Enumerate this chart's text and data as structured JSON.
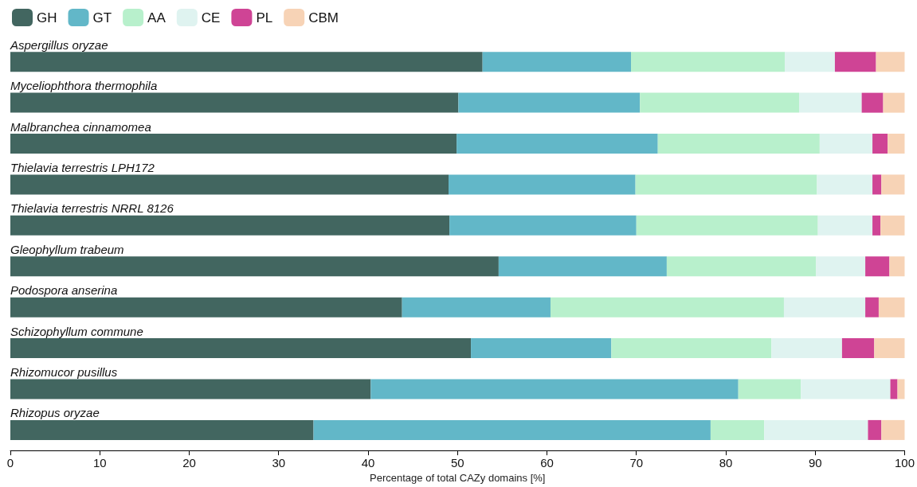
{
  "chart_data": {
    "type": "bar",
    "orientation": "horizontal",
    "stacked": true,
    "categories": [
      "Aspergillus oryzae",
      "Myceliophthora thermophila",
      "Malbranchea cinnamomea",
      "Thielavia terrestris LPH172",
      "Thielavia terrestris NRRL 8126",
      "Gleophyllum trabeum",
      "Podospora anserina",
      "Schizophyllum commune",
      "Rhizomucor pusillus",
      "Rhizopus oryzae"
    ],
    "series": [
      {
        "name": "GH",
        "color": "#426660",
        "values": [
          52.8,
          50.1,
          49.9,
          49.0,
          49.1,
          54.6,
          43.8,
          51.5,
          40.3,
          33.9
        ]
      },
      {
        "name": "GT",
        "color": "#62b7c8",
        "values": [
          16.6,
          20.3,
          22.5,
          20.9,
          20.9,
          18.8,
          16.6,
          15.7,
          41.1,
          44.4
        ]
      },
      {
        "name": "AA",
        "color": "#b8f0cc",
        "values": [
          17.2,
          17.8,
          18.1,
          20.3,
          20.3,
          16.7,
          26.1,
          17.9,
          7.0,
          6.0
        ]
      },
      {
        "name": "CE",
        "color": "#dff3f0",
        "values": [
          5.6,
          7.0,
          5.9,
          6.2,
          6.1,
          5.5,
          9.1,
          7.9,
          10.0,
          11.6
        ]
      },
      {
        "name": "PL",
        "color": "#cf4495",
        "values": [
          4.6,
          2.4,
          1.7,
          1.0,
          0.9,
          2.7,
          1.5,
          3.6,
          0.8,
          1.5
        ]
      },
      {
        "name": "CBM",
        "color": "#f7d3b6",
        "values": [
          3.2,
          2.4,
          2.0,
          2.6,
          2.7,
          1.7,
          2.9,
          3.4,
          0.8,
          2.6
        ]
      }
    ],
    "xlim": [
      0,
      100
    ],
    "xticks": [
      0,
      10,
      20,
      30,
      40,
      50,
      60,
      70,
      80,
      90,
      100
    ],
    "xlabel": "Percentage of total CAZy domains [%]",
    "grid": false,
    "legend": "top left"
  }
}
